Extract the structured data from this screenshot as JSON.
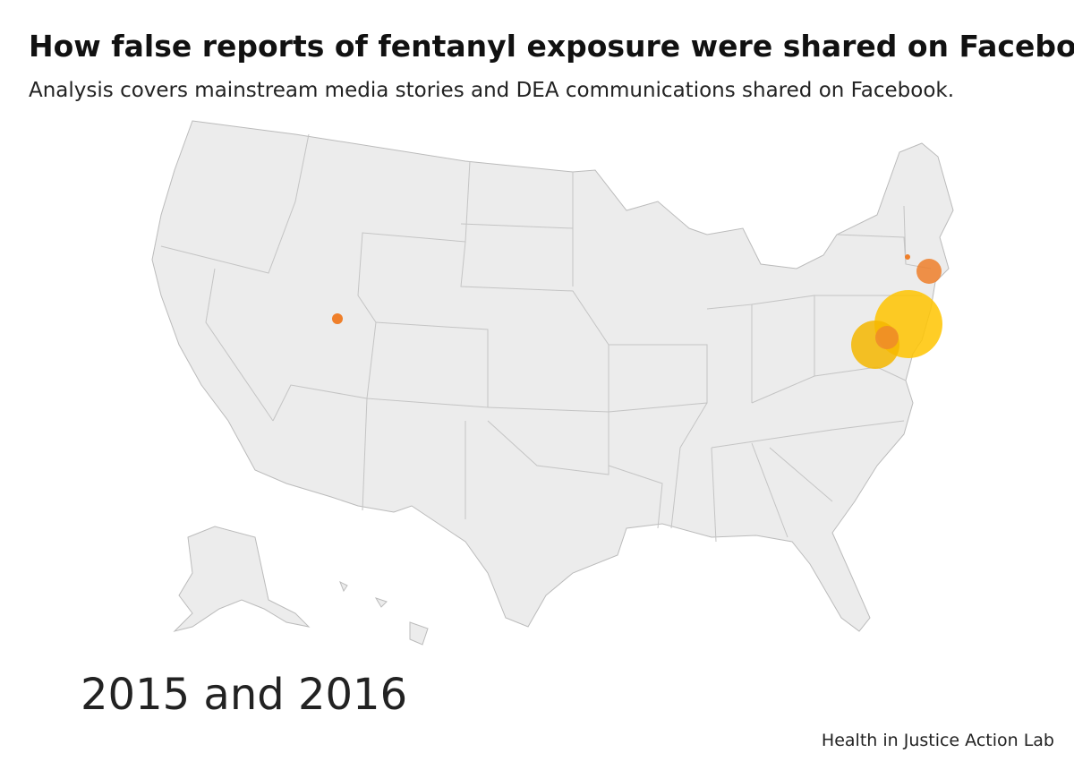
{
  "header": {
    "title": "How false reports of fentanyl exposure were shared on Facebook",
    "subtitle": "Analysis covers mainstream media stories and DEA communications shared on Facebook."
  },
  "map": {
    "period_label": "2015 and 2016"
  },
  "footer": {
    "credit": "Health in Justice Action Lab"
  }
}
